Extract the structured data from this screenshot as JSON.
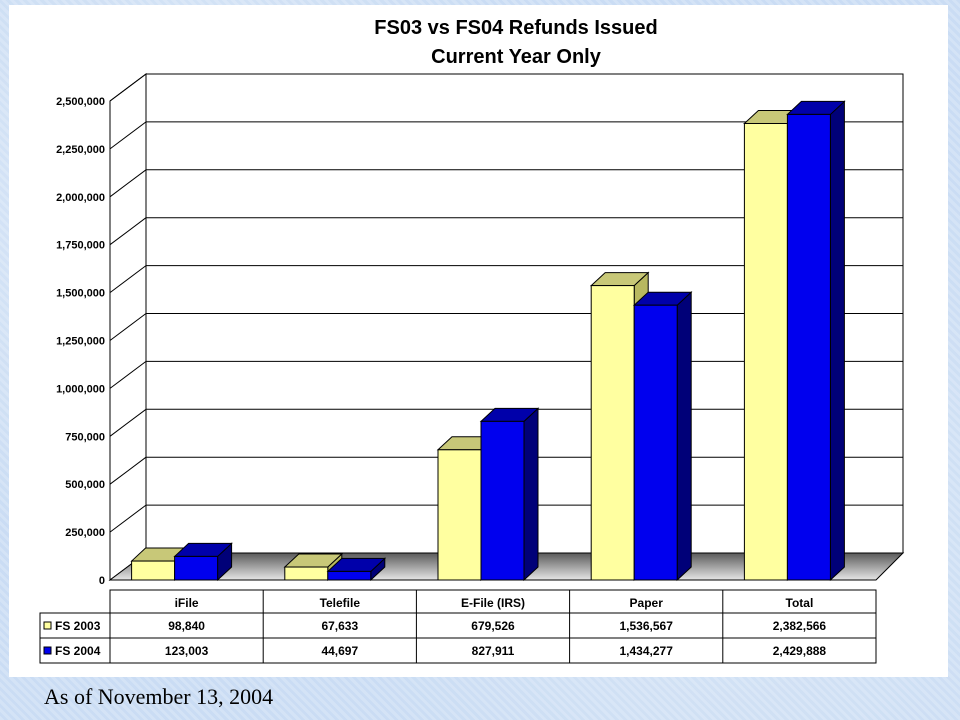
{
  "chart_data": {
    "type": "bar",
    "title": "FS03 vs FS04 Refunds Issued",
    "subtitle": "Current Year Only",
    "categories": [
      "iFile",
      "Telefile",
      "E-File (IRS)",
      "Paper",
      "Total"
    ],
    "series": [
      {
        "name": "FS 2003",
        "values": [
          98840,
          67633,
          679526,
          1536567,
          2382566
        ],
        "labels": [
          "98,840",
          "67,633",
          "679,526",
          "1,536,567",
          "2,382,566"
        ],
        "color": "#FFFFA0",
        "side_color": "#B8B860",
        "top_color": "#C8C878"
      },
      {
        "name": "FS 2004",
        "values": [
          123003,
          44697,
          827911,
          1434277,
          2429888
        ],
        "labels": [
          "123,003",
          "44,697",
          "827,911",
          "1,434,277",
          "2,429,888"
        ],
        "color": "#0000EE",
        "side_color": "#000078",
        "top_color": "#0000AA"
      }
    ],
    "ylim": [
      0,
      2500000
    ],
    "yticks": [
      "0",
      "250,000",
      "500,000",
      "750,000",
      "1,000,000",
      "1,250,000",
      "1,500,000",
      "1,750,000",
      "2,000,000",
      "2,250,000",
      "2,500,000"
    ],
    "grid": true,
    "legend": "data-table"
  },
  "footer": {
    "note": "As of November 13, 2004"
  }
}
